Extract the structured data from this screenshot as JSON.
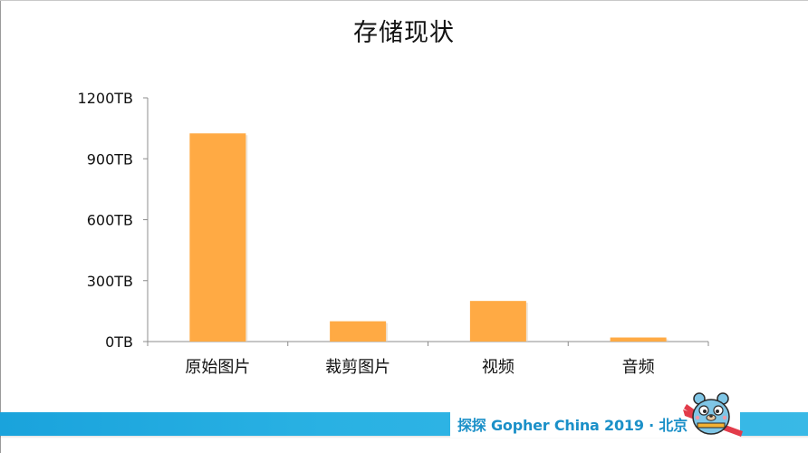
{
  "slide": {
    "title": "存储现状"
  },
  "chart_data": {
    "type": "bar",
    "title": "存储现状",
    "categories": [
      "原始图片",
      "裁剪图片",
      "视频",
      "音频"
    ],
    "values": [
      1025,
      100,
      200,
      20
    ],
    "unit": "TB",
    "ylim": [
      0,
      1200
    ],
    "yticks": [
      0,
      300,
      600,
      900,
      1200
    ],
    "ytick_labels": [
      "0TB",
      "300TB",
      "600TB",
      "900TB",
      "1200TB"
    ],
    "xlabel": "",
    "ylabel": "",
    "grid": false,
    "legend": "none",
    "bar_color": "#FFAA44"
  },
  "footer": {
    "text": "探探 Gopher China 2019 · 北京",
    "band_color": "#29B1E3",
    "text_color": "#1B90C8",
    "mascot_icon": "gopher-mascot-icon"
  }
}
